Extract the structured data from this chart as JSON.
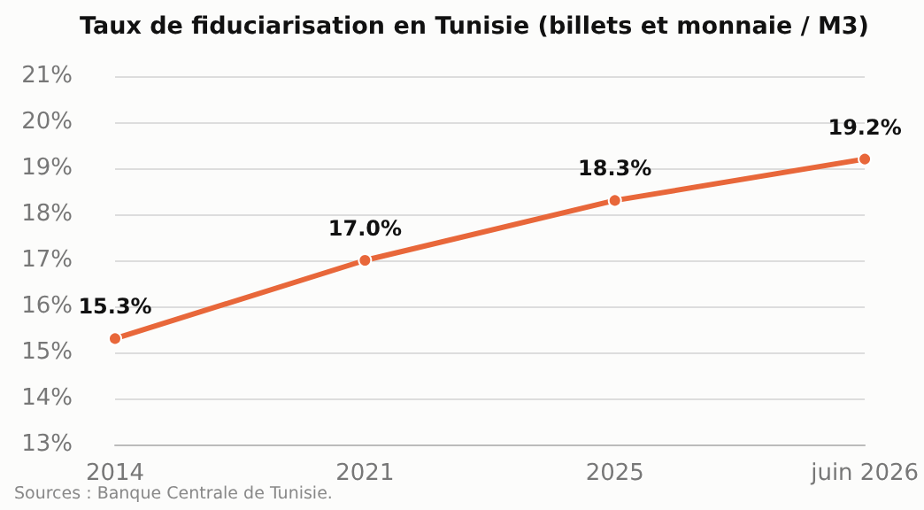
{
  "chart_data": {
    "type": "line",
    "title": "Taux de fiduciarisation en Tunisie (billets et monnaie / M3)",
    "categories": [
      "2014",
      "2021",
      "2025",
      "juin 2026"
    ],
    "series": [
      {
        "color": "#e8673a",
        "values": [
          15.3,
          17.0,
          18.3,
          19.2
        ],
        "value_labels": [
          "15.3%",
          "17.0%",
          "18.3%",
          "19.2%"
        ]
      }
    ],
    "ylim": [
      13,
      21
    ],
    "yticks": [
      {
        "value": 13,
        "label": "13%"
      },
      {
        "value": 14,
        "label": "14%"
      },
      {
        "value": 15,
        "label": "15%"
      },
      {
        "value": 16,
        "label": "16%"
      },
      {
        "value": 17,
        "label": "17%"
      },
      {
        "value": 18,
        "label": "18%"
      },
      {
        "value": 19,
        "label": "19%"
      },
      {
        "value": 20,
        "label": "20%"
      },
      {
        "value": 21,
        "label": "21%"
      }
    ],
    "grid": "y",
    "marker": "circle",
    "line_style": "solid",
    "annotations": [
      "Sources : Banque Centrale de Tunisie."
    ]
  }
}
